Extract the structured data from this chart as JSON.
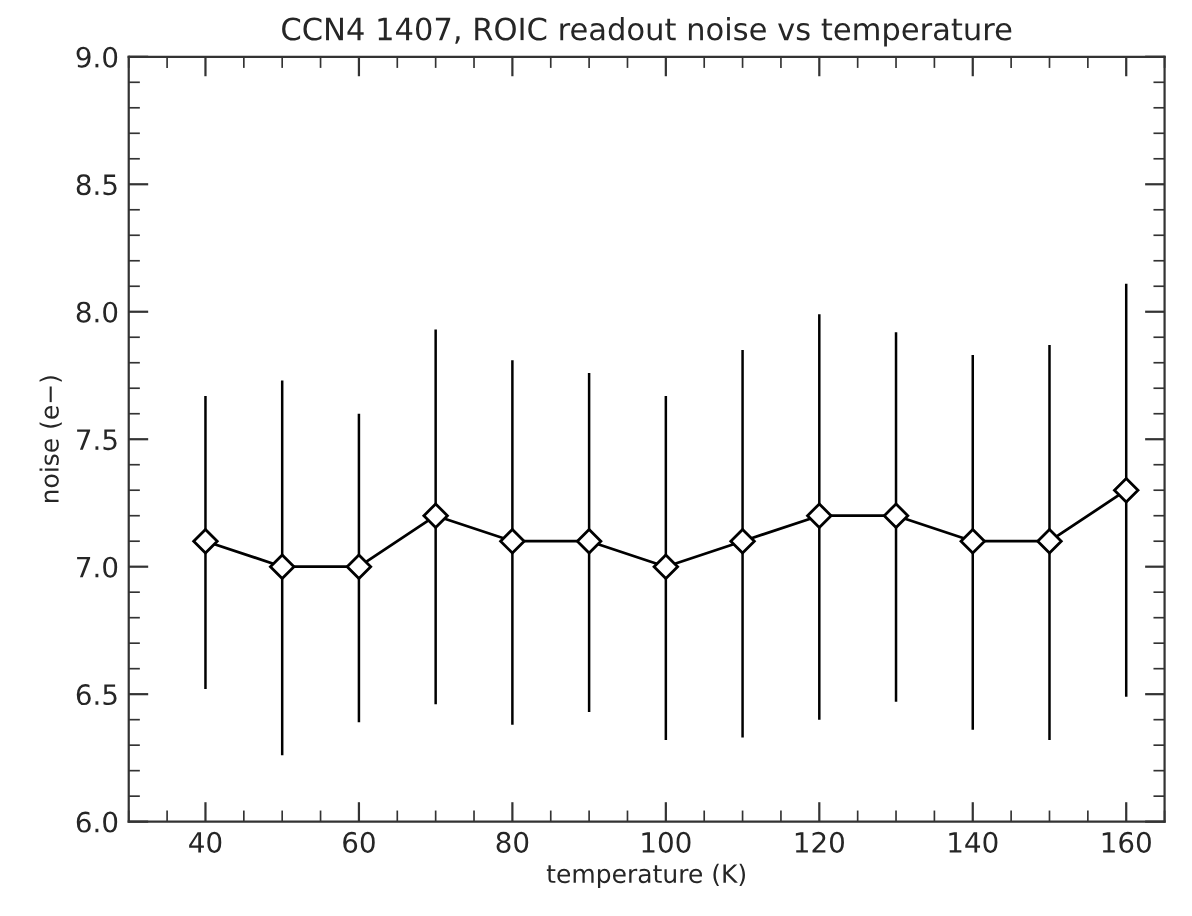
{
  "chart_data": {
    "type": "line",
    "title": "CCN4 1407, ROIC readout noise vs temperature",
    "xlabel": "temperature (K)",
    "ylabel": "noise (e−)",
    "x": [
      40,
      50,
      60,
      70,
      80,
      90,
      100,
      110,
      120,
      130,
      140,
      150,
      160
    ],
    "series": [
      {
        "color": "#000000",
        "values": [
          7.1,
          7.0,
          7.0,
          7.2,
          7.1,
          7.1,
          7.0,
          7.1,
          7.2,
          7.2,
          7.1,
          7.1,
          7.3
        ],
        "errors": [
          [
            6.52,
            7.67
          ],
          [
            6.26,
            7.73
          ],
          [
            6.39,
            7.6
          ],
          [
            6.46,
            7.93
          ],
          [
            6.38,
            7.81
          ],
          [
            6.43,
            7.76
          ],
          [
            6.32,
            7.67
          ],
          [
            6.33,
            7.85
          ],
          [
            6.4,
            7.99
          ],
          [
            6.47,
            7.92
          ],
          [
            6.36,
            7.83
          ],
          [
            6.32,
            7.87
          ],
          [
            6.49,
            8.11
          ]
        ]
      }
    ],
    "marker": "diamond",
    "line_style": "solid",
    "grid": false,
    "legend": false,
    "xlim": [
      30,
      165
    ],
    "xticks": [
      40,
      60,
      80,
      100,
      120,
      140,
      160
    ],
    "ylim": [
      6.0,
      9.0
    ],
    "yticks": [
      {
        "value": 6.0,
        "label": "6.0"
      },
      {
        "value": 6.5,
        "label": "6.5"
      },
      {
        "value": 7.0,
        "label": "7.0"
      },
      {
        "value": 7.5,
        "label": "7.5"
      },
      {
        "value": 8.0,
        "label": "8.0"
      },
      {
        "value": 8.5,
        "label": "8.5"
      },
      {
        "value": 9.0,
        "label": "9.0"
      }
    ]
  }
}
